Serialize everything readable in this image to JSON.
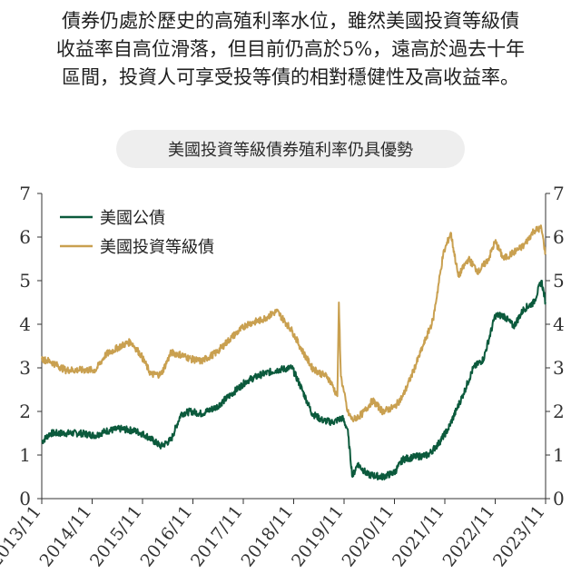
{
  "headline": {
    "line1": "債券仍處於歷史的高殖利率水位，雖然美國投資等級債",
    "line2": "收益率自高位滑落，但目前仍高於5%，遠高於過去十年",
    "line3": "區間，投資人可享受投等債的相對穩健性及高收益率。"
  },
  "chart_data": {
    "type": "line",
    "title": "美國投資等級債券殖利率仍具優勢",
    "ylim": [
      0,
      7
    ],
    "yticks": [
      0,
      1,
      2,
      3,
      4,
      5,
      6,
      7
    ],
    "xlim": [
      2013.833,
      2023.833
    ],
    "xtick_positions": [
      2013.833,
      2014.833,
      2015.833,
      2016.833,
      2017.833,
      2018.833,
      2019.833,
      2020.833,
      2021.833,
      2022.833,
      2023.833
    ],
    "xtick_labels": [
      "2013/11",
      "2014/11",
      "2015/11",
      "2016/11",
      "2017/11",
      "2018/11",
      "2019/11",
      "2020/11",
      "2021/11",
      "2022/11",
      "2023/11"
    ],
    "legend_position": "top-left",
    "grid": false,
    "series": [
      {
        "name": "美國公債",
        "color": "#0b5a3c",
        "x": [
          2013.833,
          2014.0,
          2014.3,
          2014.6,
          2014.9,
          2015.1,
          2015.4,
          2015.7,
          2015.9,
          2016.2,
          2016.4,
          2016.6,
          2016.8,
          2017.0,
          2017.3,
          2017.6,
          2017.9,
          2018.2,
          2018.5,
          2018.8,
          2019.0,
          2019.2,
          2019.4,
          2019.6,
          2019.8,
          2019.9,
          2020.0,
          2020.1,
          2020.3,
          2020.6,
          2020.833,
          2021.0,
          2021.2,
          2021.5,
          2021.7,
          2021.9,
          2022.2,
          2022.4,
          2022.6,
          2022.833,
          2023.0,
          2023.2,
          2023.4,
          2023.6,
          2023.75,
          2023.833
        ],
        "y": [
          1.3,
          1.5,
          1.5,
          1.5,
          1.45,
          1.55,
          1.6,
          1.55,
          1.45,
          1.2,
          1.35,
          1.95,
          2.0,
          1.95,
          2.1,
          2.4,
          2.7,
          2.85,
          2.95,
          3.0,
          2.5,
          1.95,
          1.8,
          1.75,
          1.85,
          1.6,
          0.5,
          0.8,
          0.55,
          0.5,
          0.6,
          0.9,
          0.95,
          1.0,
          1.25,
          1.6,
          2.4,
          3.0,
          3.2,
          4.2,
          4.2,
          3.95,
          4.35,
          4.5,
          5.0,
          4.5
        ]
      },
      {
        "name": "美國投資等級債",
        "color": "#c9a050",
        "x": [
          2013.833,
          2014.0,
          2014.3,
          2014.6,
          2014.9,
          2015.1,
          2015.4,
          2015.6,
          2015.8,
          2016.0,
          2016.2,
          2016.4,
          2016.6,
          2016.8,
          2017.0,
          2017.3,
          2017.6,
          2017.9,
          2018.2,
          2018.5,
          2018.8,
          2019.0,
          2019.2,
          2019.4,
          2019.5,
          2019.6,
          2019.7,
          2019.73,
          2019.77,
          2019.83,
          2019.9,
          2020.0,
          2020.2,
          2020.4,
          2020.6,
          2020.833,
          2021.0,
          2021.2,
          2021.4,
          2021.6,
          2021.8,
          2021.95,
          2022.1,
          2022.3,
          2022.5,
          2022.7,
          2022.833,
          2023.0,
          2023.2,
          2023.4,
          2023.6,
          2023.75,
          2023.833
        ],
        "y": [
          3.2,
          3.15,
          2.95,
          2.95,
          2.95,
          3.3,
          3.5,
          3.6,
          3.3,
          2.85,
          2.85,
          3.35,
          3.3,
          3.2,
          3.15,
          3.35,
          3.7,
          4.0,
          4.1,
          4.3,
          3.85,
          3.4,
          3.0,
          2.85,
          2.8,
          2.6,
          2.35,
          4.5,
          2.8,
          2.45,
          2.0,
          1.8,
          1.95,
          2.25,
          2.0,
          2.1,
          2.35,
          2.9,
          3.5,
          4.1,
          5.6,
          6.1,
          5.1,
          5.5,
          5.2,
          5.5,
          5.9,
          5.5,
          5.65,
          5.8,
          6.15,
          6.2,
          5.6
        ]
      }
    ]
  }
}
